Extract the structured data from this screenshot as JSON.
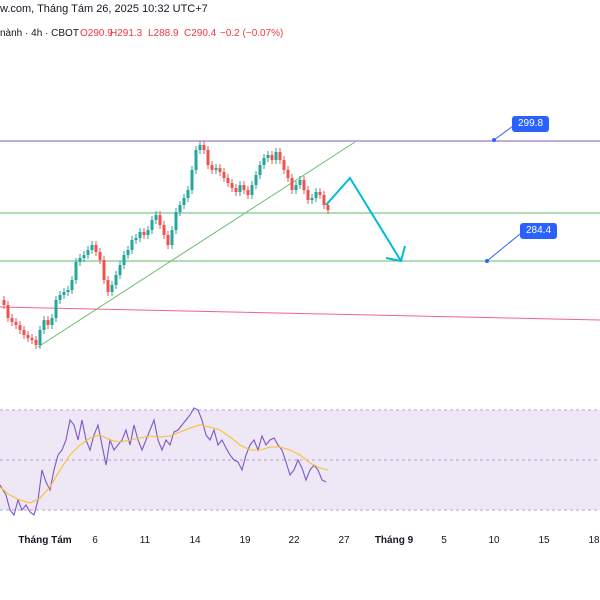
{
  "header": {
    "source": "w.com, Tháng Tám 26, 2025 10:32 UTC+7"
  },
  "ohlc": {
    "symbol_prefix": "nành · 4h · CBOT",
    "open": "O290.9",
    "high": "H291.3",
    "low": "L288.9",
    "close": "C290.4",
    "change": "−0.2 (−0.07%)"
  },
  "levels": {
    "resistance": "299.8",
    "target": "284.4"
  },
  "colors": {
    "up": "#26a69a",
    "down": "#ef5350",
    "resistance_line": "#7e57c2",
    "support_line": "#66bb6a",
    "trend_red": "#f06292",
    "trendline": "#66bb6a",
    "arrow": "#00bcd4",
    "rsi": "#7e57c2",
    "rsi_ma": "#fbc02d",
    "rsi_band": "#ede7f6",
    "label": "#2962ff"
  },
  "icons": [
    "down-arrow-projection-icon"
  ],
  "xaxis": {
    "ticks": [
      {
        "label": "Tháng Tám",
        "bold": true
      },
      {
        "label": "6",
        "bold": false
      },
      {
        "label": "11",
        "bold": false
      },
      {
        "label": "14",
        "bold": false
      },
      {
        "label": "19",
        "bold": false
      },
      {
        "label": "22",
        "bold": false
      },
      {
        "label": "27",
        "bold": false
      },
      {
        "label": "Tháng 9",
        "bold": true
      },
      {
        "label": "5",
        "bold": false
      },
      {
        "label": "10",
        "bold": false
      },
      {
        "label": "15",
        "bold": false
      },
      {
        "label": "18",
        "bold": false
      }
    ]
  }
}
